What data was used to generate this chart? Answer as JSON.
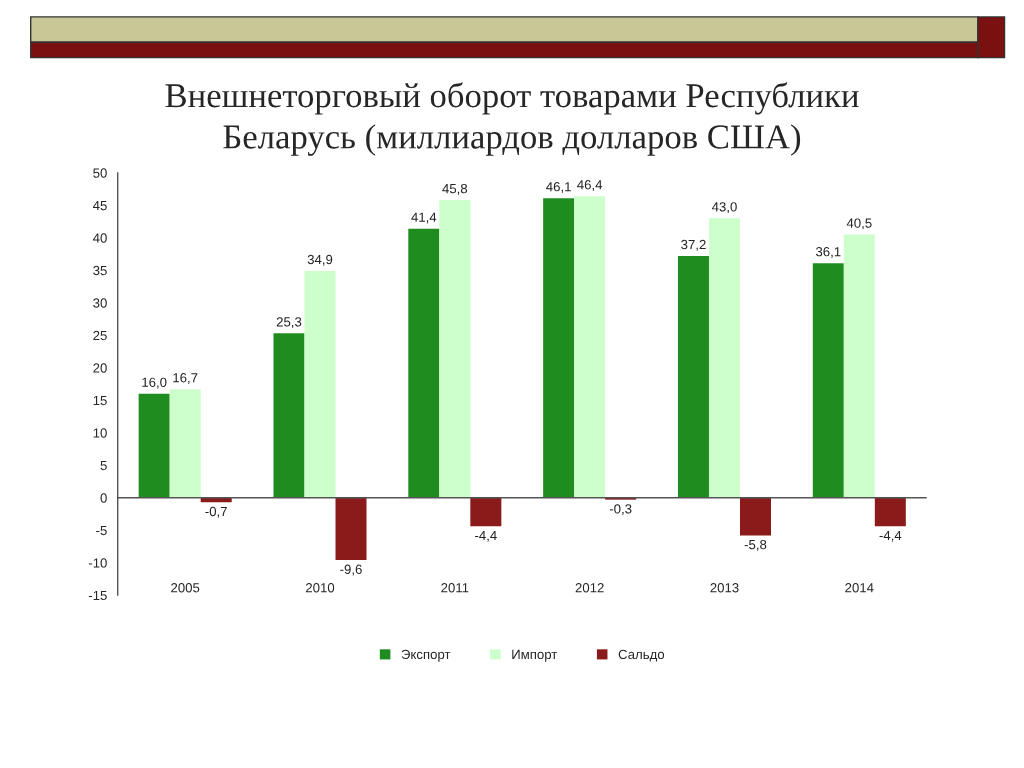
{
  "chart_data": {
    "type": "bar",
    "title": "Внешнеторговый оборот товарами Республики\nБеларусь (миллиардов долларов США)",
    "categories": [
      "2005",
      "2010",
      "2011",
      "2012",
      "2013",
      "2014"
    ],
    "series": [
      {
        "name": "Экспорт",
        "color": "#1e8c1e",
        "values": [
          16.0,
          25.3,
          41.4,
          46.1,
          37.2,
          36.1
        ],
        "value_labels": [
          "16,0",
          "25,3",
          "41,4",
          "46,1",
          "37,2",
          "36,1"
        ]
      },
      {
        "name": "Импорт",
        "color": "#ccffcc",
        "values": [
          16.7,
          34.9,
          45.8,
          46.4,
          43.0,
          40.5
        ],
        "value_labels": [
          "16,7",
          "34,9",
          "45,8",
          "46,4",
          "43,0",
          "40,5"
        ]
      },
      {
        "name": "Сальдо",
        "color": "#8b1a1a",
        "values": [
          -0.7,
          -9.6,
          -4.4,
          -0.3,
          -5.8,
          -4.4
        ],
        "value_labels": [
          "-0,7",
          "-9,6",
          "-4,4",
          "-0,3",
          "-5,8",
          "-4,4"
        ]
      }
    ],
    "ylim": [
      -15,
      50
    ],
    "yticks": [
      -15,
      -10,
      -5,
      0,
      5,
      10,
      15,
      20,
      25,
      30,
      35,
      40,
      45,
      50
    ],
    "ref_lines": [
      {
        "axis": "y",
        "value": 0,
        "color": "#555555"
      }
    ],
    "grid": false,
    "legend": "bottom"
  }
}
